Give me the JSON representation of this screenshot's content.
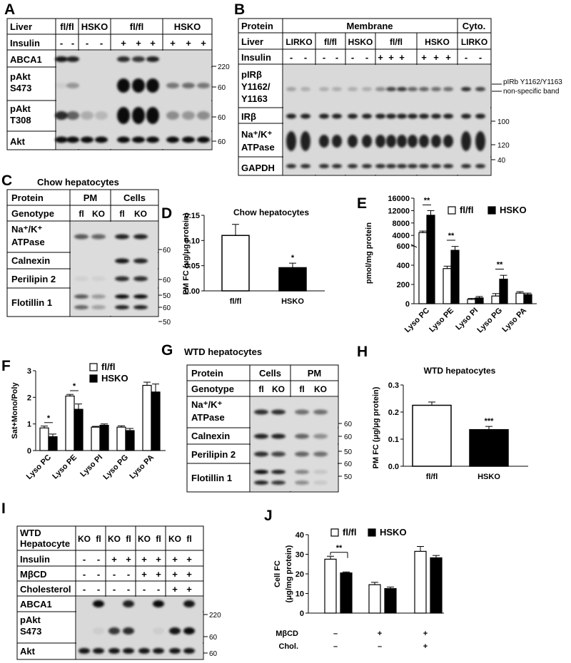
{
  "panels": {
    "A": {
      "label": "A",
      "rows": [
        "Liver",
        "Insulin",
        "ABCA1",
        "pAkt\nS473",
        "pAkt\nT308",
        "Akt"
      ],
      "groups": [
        "fl/fl",
        "HSKO",
        "fl/fl",
        "HSKO"
      ],
      "insulin": [
        "-",
        "-",
        "-",
        "-",
        "+",
        "+",
        "+",
        "+",
        "+",
        "+"
      ],
      "mw": [
        "220",
        "60",
        "60",
        "60"
      ]
    },
    "B": {
      "label": "B",
      "rows": [
        "Protein",
        "Liver",
        "Insulin",
        "pIRβ\nY1162/\nY1163",
        "IRβ",
        "Na⁺/K⁺\nATPase",
        "GAPDH"
      ],
      "header_membrane": "Membrane",
      "header_cyto": "Cyto.",
      "groups": [
        "LIRKO",
        "fl/fl",
        "HSKO",
        "fl/fl",
        "HSKO",
        "LIRKO"
      ],
      "insulin": [
        "-",
        "-",
        "-",
        "-",
        "-",
        "-",
        "+",
        "+",
        "+",
        "+",
        "+",
        "+",
        "-",
        "-"
      ],
      "annot1": "pIRb Y1162/Y1163",
      "annot2": "non-specific band",
      "mw": [
        "100",
        "120",
        "40"
      ]
    },
    "C": {
      "label": "C",
      "title": "Chow hepatocytes",
      "rows": [
        "Protein",
        "Genotype",
        "Na⁺/K⁺\nATPase",
        "Calnexin",
        "Perilipin 2",
        "Flotillin 1"
      ],
      "cols": [
        "PM",
        "Cells"
      ],
      "geno": [
        "fl",
        "KO",
        "fl",
        "KO"
      ],
      "mw": [
        "60",
        "60",
        "50",
        "60",
        "50"
      ]
    },
    "G": {
      "label": "G",
      "title": "WTD hepatocytes",
      "rows": [
        "Protein",
        "Genotype",
        "Na⁺/K⁺\nATPase",
        "Calnexin",
        "Perilipin 2",
        "Flotillin 1"
      ],
      "cols": [
        "Cells",
        "PM"
      ],
      "geno": [
        "fl",
        "KO",
        "fl",
        "KO"
      ],
      "mw": [
        "60",
        "60",
        "50",
        "60",
        "50"
      ]
    },
    "I": {
      "label": "I",
      "rows": [
        "WTD\nHepatocyte",
        "Insulin",
        "MβCD",
        "Cholesterol",
        "ABCA1",
        "pAkt\nS473",
        "Akt"
      ],
      "geno": [
        "KO",
        "fl",
        "KO",
        "fl",
        "KO",
        "fl",
        "KO",
        "fl"
      ],
      "insulin": [
        "-",
        "-",
        "+",
        "+",
        "+",
        "+",
        "+",
        "+"
      ],
      "mbcd": [
        "-",
        "-",
        "-",
        "-",
        "+",
        "+",
        "+",
        "+"
      ],
      "chol": [
        "-",
        "-",
        "-",
        "-",
        "-",
        "-",
        "+",
        "+"
      ],
      "mw": [
        "220",
        "60",
        "60"
      ]
    }
  },
  "chart_data": [
    {
      "id": "D",
      "label": "D",
      "type": "bar",
      "title": "Chow hepatocytes",
      "categories": [
        "fl/fl",
        "HSKO"
      ],
      "values": [
        0.11,
        0.046
      ],
      "errors": [
        0.022,
        0.009
      ],
      "ylabel": "PM FC (μg/μg protein)",
      "ylim": [
        0,
        0.15
      ],
      "yticks": [
        "0.00",
        "0.05",
        "0.10",
        "0.15"
      ],
      "annotations": [
        "*"
      ]
    },
    {
      "id": "E",
      "label": "E",
      "type": "bar",
      "ylabel": "pmol/mg protein",
      "categories": [
        "Lyso PC",
        "Lyso PE",
        "Lyso PI",
        "Lyso PG",
        "Lyso PA"
      ],
      "yticks_upper": [
        "4000",
        "8000",
        "12000",
        "16000"
      ],
      "yticks_lower": [
        "0",
        "200",
        "400",
        "600"
      ],
      "series": [
        {
          "name": "fl/fl",
          "values": [
            4900,
            365,
            45,
            80,
            110
          ],
          "errors": [
            500,
            25,
            10,
            25,
            15
          ]
        },
        {
          "name": "HSKO",
          "values": [
            10500,
            555,
            60,
            255,
            95
          ],
          "errors": [
            1500,
            40,
            15,
            40,
            15
          ]
        }
      ],
      "annotations": [
        "**",
        "**",
        "**"
      ]
    },
    {
      "id": "F",
      "label": "F",
      "type": "bar",
      "ylabel": "Sat+Mono/Poly",
      "categories": [
        "Lyso PC",
        "Lyso PE",
        "Lyso PI",
        "Lyso PG",
        "Lyso PA"
      ],
      "ylim": [
        0,
        3
      ],
      "yticks": [
        "0",
        "1",
        "2",
        "3"
      ],
      "series": [
        {
          "name": "fl/fl",
          "values": [
            0.85,
            2.05,
            0.88,
            0.88,
            2.45
          ],
          "errors": [
            0.07,
            0.06,
            0.03,
            0.05,
            0.12
          ]
        },
        {
          "name": "HSKO",
          "values": [
            0.52,
            1.55,
            0.95,
            0.75,
            2.2
          ],
          "errors": [
            0.1,
            0.2,
            0.05,
            0.08,
            0.3
          ]
        }
      ],
      "annotations": [
        "*",
        "*"
      ]
    },
    {
      "id": "H",
      "label": "H",
      "type": "bar",
      "title": "WTD hepatocytes",
      "categories": [
        "fl/fl",
        "HSKO"
      ],
      "values": [
        0.225,
        0.135
      ],
      "errors": [
        0.012,
        0.012
      ],
      "ylabel": "PM FC (μg/μg protein)",
      "ylim": [
        0,
        0.3
      ],
      "yticks": [
        "0.0",
        "0.1",
        "0.2",
        "0.3"
      ],
      "annotations": [
        "***"
      ]
    },
    {
      "id": "J",
      "label": "J",
      "type": "bar",
      "ylabel": "Cell FC\n(μg/mg protein)",
      "ylim": [
        0,
        40
      ],
      "yticks": [
        "0",
        "10",
        "20",
        "30",
        "40"
      ],
      "rowlabels": [
        "MβCD",
        "Chol."
      ],
      "conds": [
        [
          "–",
          "–"
        ],
        [
          "+",
          "–"
        ],
        [
          "+",
          "+"
        ]
      ],
      "series": [
        {
          "name": "fl/fl",
          "values": [
            27.5,
            14.5,
            31.5
          ],
          "errors": [
            1.5,
            1.2,
            2.5
          ]
        },
        {
          "name": "HSKO",
          "values": [
            20.5,
            12.5,
            28.2
          ],
          "errors": [
            0.5,
            0.8,
            1.2
          ]
        }
      ],
      "annotations": [
        "**"
      ]
    }
  ]
}
